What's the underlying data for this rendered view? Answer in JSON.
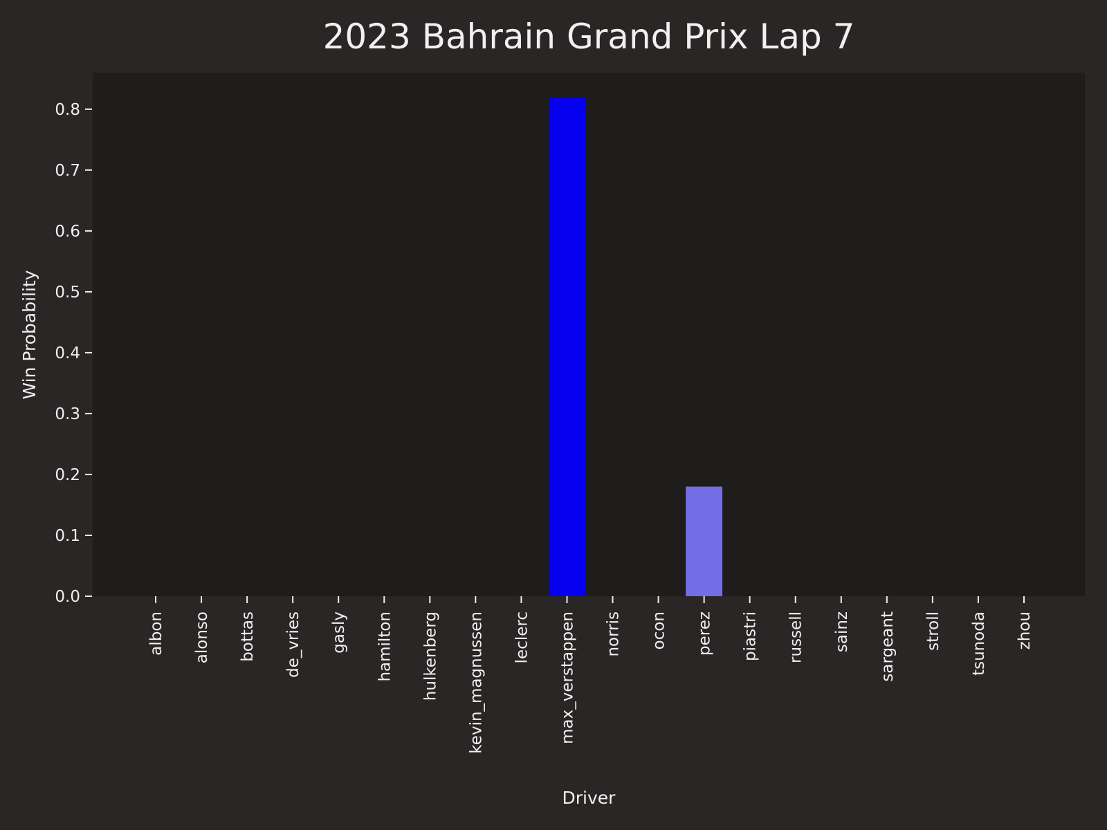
{
  "chart_data": {
    "type": "bar",
    "title": "2023 Bahrain Grand Prix Lap 7",
    "xlabel": "Driver",
    "ylabel": "Win Probability",
    "categories": [
      "albon",
      "alonso",
      "bottas",
      "de_vries",
      "gasly",
      "hamilton",
      "hulkenberg",
      "kevin_magnussen",
      "leclerc",
      "max_verstappen",
      "norris",
      "ocon",
      "perez",
      "piastri",
      "russell",
      "sainz",
      "sargeant",
      "stroll",
      "tsunoda",
      "zhou"
    ],
    "values": [
      0,
      0,
      0,
      0,
      0,
      0,
      0,
      0,
      0,
      0.82,
      0,
      0,
      0.18,
      0,
      0,
      0,
      0,
      0,
      0,
      0
    ],
    "bar_colors": {
      "max_verstappen": "#0600ef",
      "perez": "#736ee6"
    },
    "ylim": [
      0,
      0.86
    ],
    "yticks": [
      "0.0",
      "0.1",
      "0.2",
      "0.3",
      "0.4",
      "0.5",
      "0.6",
      "0.7",
      "0.8"
    ],
    "grid": false,
    "colors": {
      "figure_bg": "#292625",
      "plot_bg": "#1e1d1c",
      "text": "#f0f0f0"
    }
  }
}
